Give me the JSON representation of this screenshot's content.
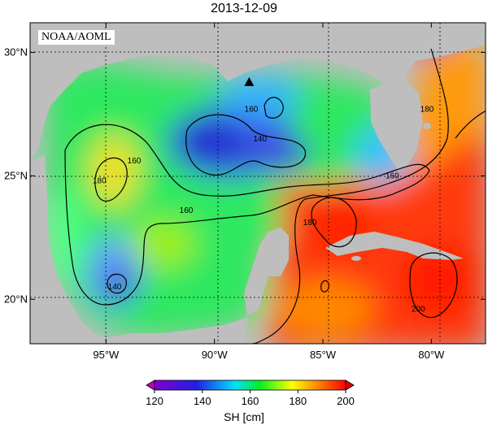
{
  "title": "2013-12-09",
  "credit": "NOAA/AOML",
  "lat_ticks": [
    {
      "label": "30°N",
      "value": 30
    },
    {
      "label": "25°N",
      "value": 25
    },
    {
      "label": "20°N",
      "value": 20
    }
  ],
  "lon_ticks": [
    {
      "label": "95°W",
      "value": -95
    },
    {
      "label": "90°W",
      "value": -90
    },
    {
      "label": "85°W",
      "value": -85
    },
    {
      "label": "80°W",
      "value": -80
    }
  ],
  "extent": {
    "lon_min": -98.5,
    "lon_max": -77.5,
    "lat_min": 18.2,
    "lat_max": 31.2
  },
  "contour_labels": [
    {
      "text": "160",
      "lon": -88.3,
      "lat": 27.6
    },
    {
      "text": "140",
      "lon": -87.9,
      "lat": 26.4
    },
    {
      "text": "180",
      "lon": -80.2,
      "lat": 27.6
    },
    {
      "text": "160",
      "lon": -81.8,
      "lat": 24.9
    },
    {
      "text": "180",
      "lon": -95.3,
      "lat": 24.7
    },
    {
      "text": "160",
      "lon": -93.7,
      "lat": 25.5
    },
    {
      "text": "160",
      "lon": -91.3,
      "lat": 23.5
    },
    {
      "text": "180",
      "lon": -85.6,
      "lat": 23.0
    },
    {
      "text": "140",
      "lon": -94.6,
      "lat": 20.4
    },
    {
      "text": "200",
      "lon": -80.6,
      "lat": 19.5
    }
  ],
  "marker": {
    "type": "triangle",
    "lon": -88.4,
    "lat": 28.8
  },
  "colorbar": {
    "unit_label": "SH [cm]",
    "ticks": [
      "120",
      "140",
      "160",
      "180",
      "200"
    ],
    "min": 120,
    "max": 200,
    "colors": [
      "#c000c0",
      "#3030e0",
      "#00e0ff",
      "#00f000",
      "#ffff00",
      "#ff8000",
      "#ff0000"
    ]
  },
  "colors": {
    "land": "#bebebe",
    "grid": "#000000"
  }
}
